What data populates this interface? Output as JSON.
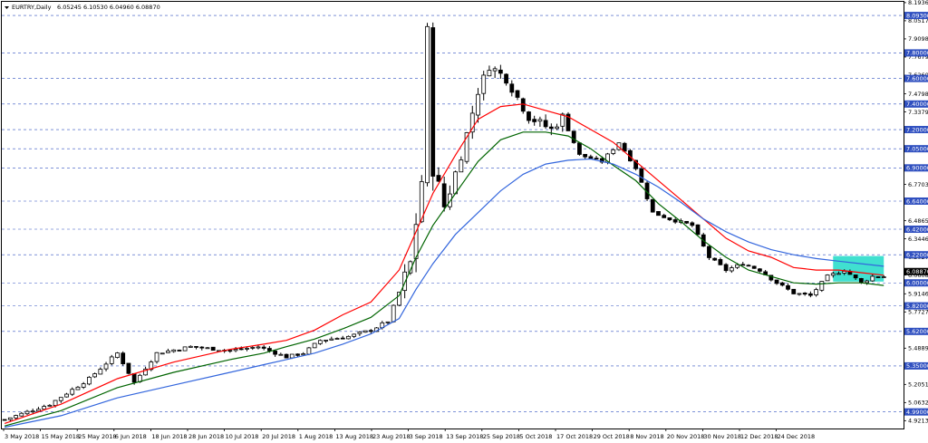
{
  "header": {
    "symbol": "EURTRY,Daily",
    "ohlc": "6.05245 6.10530 6.04960 6.08870"
  },
  "colors": {
    "bull": "#ffffff",
    "bear": "#000000",
    "ma_fast": "#ff0000",
    "ma_mid": "#006400",
    "ma_slow": "#3366dd",
    "grid": "#3050c0",
    "zone": "#40e0d0",
    "level_tag": "#3050c0",
    "price_tag": "#000000"
  },
  "chart_data": {
    "type": "line",
    "title": "EURTRY,Daily",
    "ylim": [
      4.86,
      8.2
    ],
    "y_ticks": [
      "8.19360",
      "8.05170",
      "7.90980",
      "7.76790",
      "7.62600",
      "7.47980",
      "7.33790",
      "7.19600",
      "7.05410",
      "6.91220",
      "6.77030",
      "6.62840",
      "6.48650",
      "6.34460",
      "6.20270",
      "6.06080",
      "5.91460",
      "5.77270",
      "5.63080",
      "5.48890",
      "5.34700",
      "5.20510",
      "5.06320",
      "4.92130"
    ],
    "levels": [
      "8.09300",
      "7.80000",
      "7.60000",
      "7.40000",
      "7.20000",
      "7.05000",
      "6.90000",
      "6.64000",
      "6.42000",
      "6.22000",
      "6.00000",
      "5.82000",
      "5.62000",
      "5.35000",
      "4.99000"
    ],
    "price_tag": "6.08870",
    "x_labels": [
      "3 May 2018",
      "15 May 2018",
      "25 May 2018",
      "6 Jun 2018",
      "18 Jun 2018",
      "28 Jun 2018",
      "10 Jul 2018",
      "20 Jul 2018",
      "1 Aug 2018",
      "13 Aug 2018",
      "23 Aug 2018",
      "3 Sep 2018",
      "13 Sep 2018",
      "25 Sep 2018",
      "5 Oct 2018",
      "17 Oct 2018",
      "29 Oct 2018",
      "8 Nov 2018",
      "20 Nov 2018",
      "30 Nov 2018",
      "12 Dec 2018",
      "24 Dec 2018"
    ],
    "close_path": [
      [
        0,
        4.93
      ],
      [
        8,
        5.05
      ],
      [
        15,
        5.25
      ],
      [
        20,
        5.45
      ],
      [
        23,
        5.22
      ],
      [
        27,
        5.45
      ],
      [
        33,
        5.5
      ],
      [
        40,
        5.47
      ],
      [
        45,
        5.5
      ],
      [
        50,
        5.42
      ],
      [
        53,
        5.45
      ],
      [
        56,
        5.55
      ],
      [
        61,
        5.58
      ],
      [
        65,
        5.63
      ],
      [
        68,
        5.7
      ],
      [
        72,
        6.15
      ],
      [
        74,
        6.8
      ],
      [
        75,
        7.95
      ],
      [
        76,
        6.9
      ],
      [
        78,
        6.6
      ],
      [
        81,
        7.0
      ],
      [
        84,
        7.5
      ],
      [
        86,
        7.7
      ],
      [
        89,
        7.6
      ],
      [
        93,
        7.3
      ],
      [
        97,
        7.2
      ],
      [
        99,
        7.3
      ],
      [
        102,
        7.0
      ],
      [
        106,
        6.95
      ],
      [
        109,
        7.1
      ],
      [
        112,
        6.9
      ],
      [
        115,
        6.55
      ],
      [
        118,
        6.5
      ],
      [
        122,
        6.45
      ],
      [
        125,
        6.2
      ],
      [
        128,
        6.1
      ],
      [
        131,
        6.15
      ],
      [
        134,
        6.1
      ],
      [
        137,
        6.0
      ],
      [
        140,
        5.92
      ],
      [
        143,
        5.9
      ],
      [
        146,
        6.05
      ],
      [
        149,
        6.1
      ],
      [
        152,
        6.0
      ],
      [
        154,
        6.05
      ],
      [
        156,
        6.05
      ]
    ],
    "series": [
      {
        "name": "",
        "color": "#ff0000",
        "points": [
          [
            0,
            4.9
          ],
          [
            10,
            5.05
          ],
          [
            20,
            5.25
          ],
          [
            30,
            5.38
          ],
          [
            40,
            5.48
          ],
          [
            46,
            5.52
          ],
          [
            50,
            5.55
          ],
          [
            55,
            5.63
          ],
          [
            60,
            5.75
          ],
          [
            65,
            5.85
          ],
          [
            70,
            6.1
          ],
          [
            73,
            6.4
          ],
          [
            76,
            6.7
          ],
          [
            80,
            7.0
          ],
          [
            84,
            7.28
          ],
          [
            88,
            7.38
          ],
          [
            92,
            7.4
          ],
          [
            96,
            7.35
          ],
          [
            100,
            7.3
          ],
          [
            104,
            7.2
          ],
          [
            108,
            7.1
          ],
          [
            112,
            6.95
          ],
          [
            116,
            6.8
          ],
          [
            120,
            6.65
          ],
          [
            124,
            6.5
          ],
          [
            128,
            6.35
          ],
          [
            132,
            6.25
          ],
          [
            136,
            6.2
          ],
          [
            140,
            6.12
          ],
          [
            144,
            6.1
          ],
          [
            148,
            6.1
          ],
          [
            152,
            6.08
          ],
          [
            156,
            6.06
          ]
        ]
      },
      {
        "name": "",
        "color": "#006400",
        "points": [
          [
            0,
            4.88
          ],
          [
            10,
            5.0
          ],
          [
            20,
            5.18
          ],
          [
            30,
            5.3
          ],
          [
            40,
            5.4
          ],
          [
            46,
            5.45
          ],
          [
            50,
            5.5
          ],
          [
            55,
            5.56
          ],
          [
            60,
            5.64
          ],
          [
            65,
            5.73
          ],
          [
            70,
            5.9
          ],
          [
            73,
            6.2
          ],
          [
            76,
            6.45
          ],
          [
            80,
            6.7
          ],
          [
            84,
            6.95
          ],
          [
            88,
            7.12
          ],
          [
            92,
            7.18
          ],
          [
            96,
            7.18
          ],
          [
            100,
            7.15
          ],
          [
            104,
            7.05
          ],
          [
            108,
            6.92
          ],
          [
            112,
            6.8
          ],
          [
            116,
            6.62
          ],
          [
            120,
            6.48
          ],
          [
            124,
            6.33
          ],
          [
            128,
            6.2
          ],
          [
            132,
            6.1
          ],
          [
            136,
            6.05
          ],
          [
            140,
            6.0
          ],
          [
            144,
            5.99
          ],
          [
            148,
            6.0
          ],
          [
            152,
            6.0
          ],
          [
            156,
            5.98
          ]
        ]
      },
      {
        "name": "",
        "color": "#3366dd",
        "points": [
          [
            0,
            4.87
          ],
          [
            10,
            4.96
          ],
          [
            20,
            5.1
          ],
          [
            30,
            5.2
          ],
          [
            40,
            5.3
          ],
          [
            46,
            5.36
          ],
          [
            50,
            5.4
          ],
          [
            55,
            5.45
          ],
          [
            60,
            5.52
          ],
          [
            65,
            5.6
          ],
          [
            70,
            5.72
          ],
          [
            73,
            5.95
          ],
          [
            76,
            6.15
          ],
          [
            80,
            6.38
          ],
          [
            84,
            6.55
          ],
          [
            88,
            6.72
          ],
          [
            92,
            6.85
          ],
          [
            96,
            6.93
          ],
          [
            100,
            6.96
          ],
          [
            104,
            6.97
          ],
          [
            108,
            6.93
          ],
          [
            112,
            6.85
          ],
          [
            116,
            6.75
          ],
          [
            120,
            6.63
          ],
          [
            124,
            6.5
          ],
          [
            128,
            6.4
          ],
          [
            132,
            6.32
          ],
          [
            136,
            6.26
          ],
          [
            140,
            6.22
          ],
          [
            144,
            6.19
          ],
          [
            148,
            6.17
          ],
          [
            152,
            6.15
          ],
          [
            156,
            6.13
          ]
        ]
      }
    ],
    "zone": {
      "x0": 147,
      "x1": 156,
      "y0": 6.01,
      "y1": 6.21
    },
    "grid": true
  }
}
